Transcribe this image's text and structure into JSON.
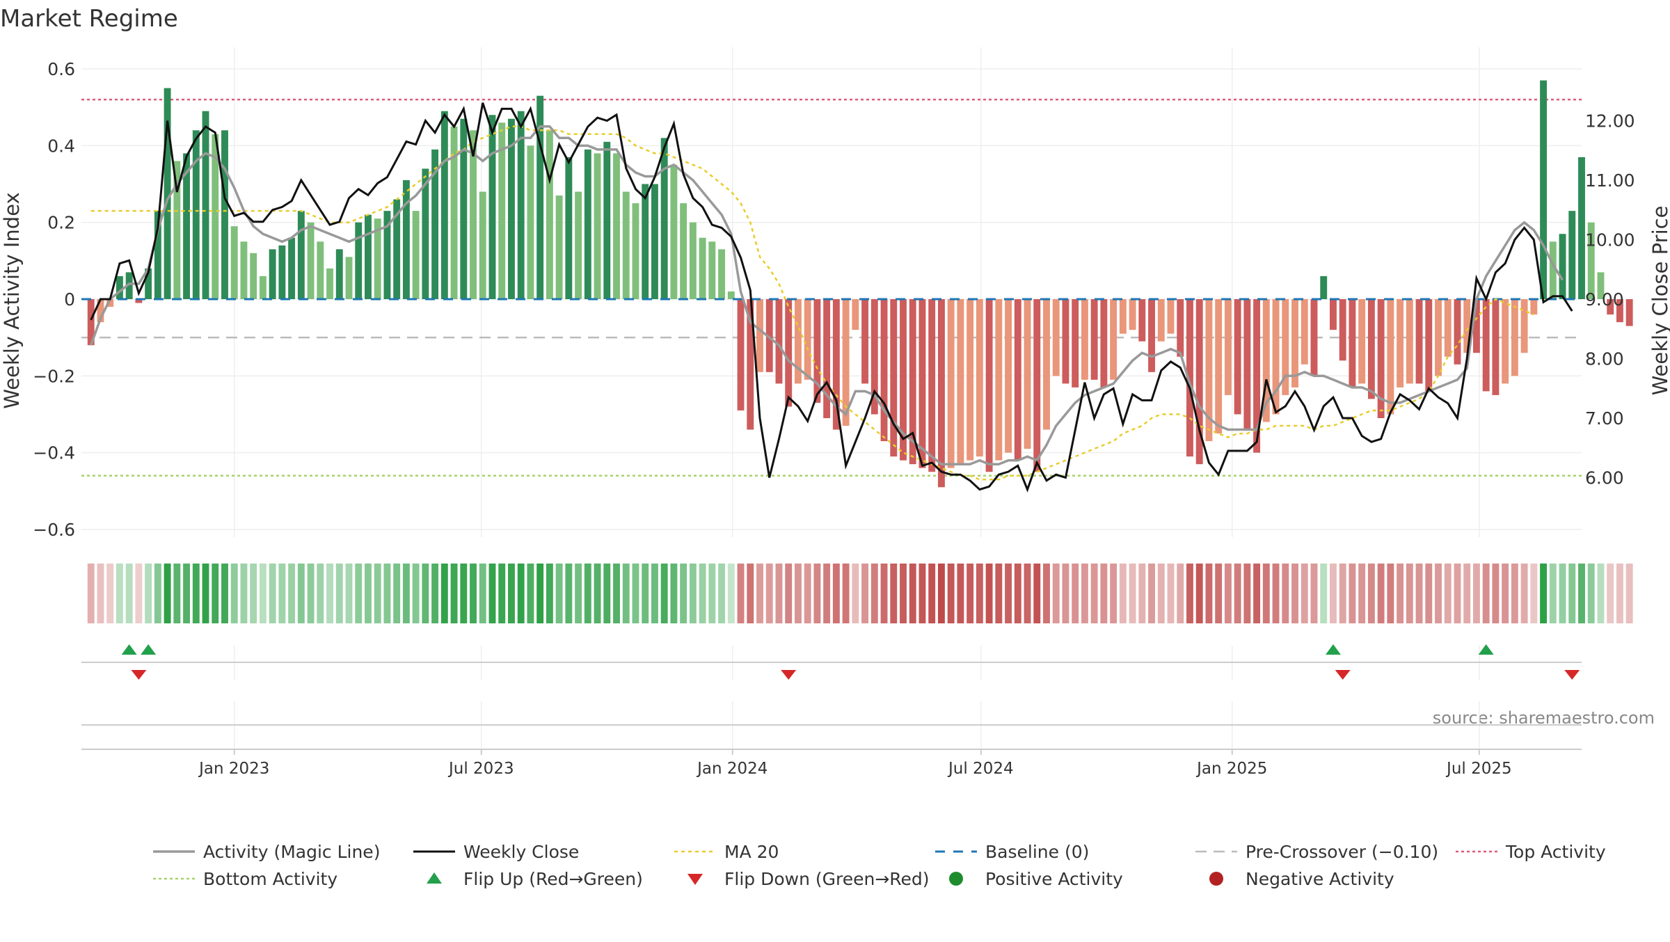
{
  "title": "Market Regime",
  "source": "source: sharemaestro.com",
  "colors": {
    "green_dark": "#2e8b57",
    "green_light": "#7fbf7b",
    "red_dark": "#cd5c5c",
    "red_light": "#e9967a",
    "close_line": "#111111",
    "magic_line": "#999999",
    "ma20": "#e8cc2a",
    "baseline": "#1f77b4",
    "pre_crossover": "#bbbbbb",
    "top_activity": "#e05a7a",
    "bottom_activity": "#a8d26b",
    "flip_up": "#22a04b",
    "flip_down": "#d62728",
    "positive_dot": "#1e8c2e",
    "negative_dot": "#b22222"
  },
  "chart_data": {
    "type": "bar",
    "title": "Market Regime",
    "xlabel": "",
    "y_left_label": "Weekly Activity Index",
    "y_right_label": "Weekly Close Price",
    "y_left_range": [
      -0.62,
      0.62
    ],
    "y_right_range": [
      5.0,
      13.0
    ],
    "y_left_ticks": [
      {
        "v": 0.6,
        "label": "0.6"
      },
      {
        "v": 0.4,
        "label": "0.4"
      },
      {
        "v": 0.2,
        "label": "0.2"
      },
      {
        "v": 0,
        "label": "0"
      },
      {
        "v": -0.2,
        "label": "−0.2"
      },
      {
        "v": -0.4,
        "label": "−0.4"
      },
      {
        "v": -0.6,
        "label": "−0.6"
      }
    ],
    "y_right_ticks": [
      {
        "v": 12,
        "label": "12.00"
      },
      {
        "v": 11,
        "label": "11.00"
      },
      {
        "v": 10,
        "label": "10.00"
      },
      {
        "v": 9,
        "label": "9.00"
      },
      {
        "v": 8,
        "label": "8.00"
      },
      {
        "v": 7,
        "label": "7.00"
      },
      {
        "v": 6,
        "label": "6.00"
      }
    ],
    "x_range": [
      "2022-09-11",
      "2025-09-14"
    ],
    "x_ticks": [
      {
        "date": "2023-01-01",
        "label": "Jan 2023"
      },
      {
        "date": "2023-07-01",
        "label": "Jul 2023"
      },
      {
        "date": "2024-01-01",
        "label": "Jan 2024"
      },
      {
        "date": "2024-07-01",
        "label": "Jul 2024"
      },
      {
        "date": "2025-01-01",
        "label": "Jan 2025"
      },
      {
        "date": "2025-07-01",
        "label": "Jul 2025"
      }
    ],
    "grid": true,
    "legend_position": "bottom",
    "start_date": "2022-09-18",
    "activity": [
      -0.12,
      -0.06,
      -0.02,
      0.06,
      0.07,
      -0.01,
      0.08,
      0.23,
      0.55,
      0.36,
      0.38,
      0.44,
      0.49,
      0.43,
      0.44,
      0.19,
      0.15,
      0.12,
      0.06,
      0.13,
      0.14,
      0.16,
      0.23,
      0.2,
      0.15,
      0.08,
      0.13,
      0.11,
      0.2,
      0.22,
      0.21,
      0.23,
      0.26,
      0.31,
      0.23,
      0.34,
      0.39,
      0.49,
      0.45,
      0.47,
      0.44,
      0.28,
      0.48,
      0.46,
      0.47,
      0.49,
      0.4,
      0.53,
      0.44,
      0.27,
      0.37,
      0.28,
      0.39,
      0.38,
      0.41,
      0.38,
      0.28,
      0.25,
      0.3,
      0.3,
      0.42,
      0.35,
      0.25,
      0.2,
      0.16,
      0.15,
      0.13,
      0.02,
      -0.29,
      -0.34,
      -0.19,
      -0.19,
      -0.22,
      -0.28,
      -0.22,
      -0.21,
      -0.27,
      -0.31,
      -0.34,
      -0.33,
      -0.08,
      -0.22,
      -0.3,
      -0.37,
      -0.41,
      -0.42,
      -0.43,
      -0.44,
      -0.45,
      -0.49,
      -0.44,
      -0.43,
      -0.42,
      -0.41,
      -0.45,
      -0.42,
      -0.4,
      -0.42,
      -0.39,
      -0.45,
      -0.34,
      -0.2,
      -0.22,
      -0.23,
      -0.21,
      -0.21,
      -0.23,
      -0.21,
      -0.09,
      -0.08,
      -0.11,
      -0.19,
      -0.11,
      -0.09,
      -0.15,
      -0.41,
      -0.43,
      -0.37,
      -0.35,
      -0.25,
      -0.3,
      -0.34,
      -0.4,
      -0.32,
      -0.3,
      -0.25,
      -0.23,
      -0.17,
      -0.2,
      0.06,
      -0.08,
      -0.16,
      -0.23,
      -0.22,
      -0.26,
      -0.31,
      -0.3,
      -0.23,
      -0.22,
      -0.22,
      -0.24,
      -0.2,
      -0.15,
      -0.17,
      -0.14,
      -0.14,
      -0.24,
      -0.25,
      -0.22,
      -0.2,
      -0.14,
      -0.04,
      0.57,
      0.15,
      0.17,
      0.23,
      0.37,
      0.2,
      0.07,
      -0.04,
      -0.06,
      -0.07
    ],
    "close": [
      8.65,
      9.0,
      9.0,
      9.6,
      9.65,
      9.1,
      9.45,
      10.2,
      12.0,
      10.8,
      11.4,
      11.7,
      11.9,
      11.8,
      10.7,
      10.4,
      10.45,
      10.3,
      10.3,
      10.5,
      10.55,
      10.65,
      11.0,
      10.75,
      10.5,
      10.25,
      10.3,
      10.7,
      10.85,
      10.75,
      10.95,
      11.05,
      11.35,
      11.65,
      11.6,
      12.0,
      11.8,
      12.1,
      11.9,
      12.2,
      11.4,
      12.3,
      11.8,
      12.2,
      12.2,
      11.9,
      12.2,
      11.6,
      11.0,
      11.6,
      11.3,
      11.6,
      11.9,
      12.05,
      12.0,
      12.1,
      11.2,
      10.85,
      10.7,
      11.05,
      11.55,
      11.95,
      11.1,
      10.7,
      10.55,
      10.25,
      10.2,
      10.05,
      9.7,
      9.15,
      7.0,
      6.0,
      6.65,
      7.35,
      7.2,
      6.95,
      7.4,
      7.6,
      7.3,
      6.2,
      6.6,
      7.0,
      7.45,
      7.25,
      6.9,
      6.65,
      6.75,
      6.2,
      6.25,
      6.1,
      6.05,
      6.05,
      5.95,
      5.8,
      5.85,
      6.05,
      6.1,
      6.2,
      5.8,
      6.25,
      5.95,
      6.05,
      6.0,
      6.8,
      7.6,
      7.0,
      7.4,
      7.5,
      6.9,
      7.4,
      7.3,
      7.3,
      7.8,
      7.95,
      7.85,
      7.5,
      6.8,
      6.25,
      6.05,
      6.45,
      6.45,
      6.45,
      6.6,
      7.65,
      7.1,
      7.2,
      7.45,
      7.2,
      6.8,
      7.2,
      7.35,
      7.0,
      7.0,
      6.7,
      6.6,
      6.65,
      7.1,
      7.4,
      7.3,
      7.15,
      7.5,
      7.35,
      7.25,
      7.0,
      8.0,
      9.35,
      9.0,
      9.45,
      9.6,
      10.0,
      10.2,
      10.0,
      8.95,
      9.05,
      9.05,
      8.8
    ],
    "magic": [
      -0.12,
      -0.05,
      0.0,
      0.02,
      0.04,
      0.04,
      0.08,
      0.18,
      0.26,
      0.3,
      0.33,
      0.36,
      0.38,
      0.37,
      0.34,
      0.29,
      0.23,
      0.19,
      0.17,
      0.16,
      0.15,
      0.16,
      0.18,
      0.19,
      0.18,
      0.17,
      0.16,
      0.15,
      0.16,
      0.17,
      0.18,
      0.19,
      0.22,
      0.25,
      0.27,
      0.3,
      0.33,
      0.36,
      0.37,
      0.39,
      0.38,
      0.36,
      0.38,
      0.39,
      0.4,
      0.42,
      0.42,
      0.45,
      0.45,
      0.42,
      0.42,
      0.4,
      0.4,
      0.39,
      0.39,
      0.39,
      0.35,
      0.33,
      0.32,
      0.32,
      0.34,
      0.35,
      0.33,
      0.31,
      0.28,
      0.25,
      0.22,
      0.17,
      0.02,
      -0.06,
      -0.08,
      -0.1,
      -0.12,
      -0.16,
      -0.18,
      -0.2,
      -0.22,
      -0.25,
      -0.28,
      -0.3,
      -0.24,
      -0.24,
      -0.25,
      -0.29,
      -0.32,
      -0.35,
      -0.37,
      -0.39,
      -0.41,
      -0.43,
      -0.43,
      -0.43,
      -0.43,
      -0.42,
      -0.43,
      -0.43,
      -0.42,
      -0.42,
      -0.41,
      -0.42,
      -0.38,
      -0.33,
      -0.3,
      -0.27,
      -0.25,
      -0.24,
      -0.23,
      -0.22,
      -0.19,
      -0.16,
      -0.14,
      -0.15,
      -0.14,
      -0.13,
      -0.14,
      -0.22,
      -0.28,
      -0.31,
      -0.33,
      -0.34,
      -0.34,
      -0.34,
      -0.34,
      -0.27,
      -0.24,
      -0.2,
      -0.2,
      -0.19,
      -0.2,
      -0.2,
      -0.21,
      -0.22,
      -0.23,
      -0.23,
      -0.24,
      -0.26,
      -0.27,
      -0.27,
      -0.26,
      -0.25,
      -0.24,
      -0.23,
      -0.22,
      -0.21,
      -0.18,
      0.0,
      0.06,
      0.1,
      0.14,
      0.18,
      0.2,
      0.18,
      0.14,
      0.09,
      0.05
    ],
    "ma20": [
      0.23,
      0.23,
      0.23,
      0.23,
      0.23,
      0.23,
      0.23,
      0.23,
      0.23,
      0.23,
      0.23,
      0.23,
      0.23,
      0.23,
      0.23,
      0.23,
      0.23,
      0.23,
      0.23,
      0.23,
      0.23,
      0.23,
      0.23,
      0.22,
      0.21,
      0.2,
      0.2,
      0.2,
      0.21,
      0.22,
      0.23,
      0.24,
      0.26,
      0.28,
      0.3,
      0.32,
      0.34,
      0.36,
      0.38,
      0.39,
      0.41,
      0.42,
      0.43,
      0.44,
      0.45,
      0.45,
      0.44,
      0.44,
      0.44,
      0.44,
      0.43,
      0.43,
      0.43,
      0.43,
      0.43,
      0.43,
      0.42,
      0.4,
      0.39,
      0.38,
      0.38,
      0.37,
      0.36,
      0.35,
      0.34,
      0.32,
      0.3,
      0.28,
      0.25,
      0.2,
      0.11,
      0.08,
      0.04,
      -0.02,
      -0.07,
      -0.13,
      -0.18,
      -0.22,
      -0.25,
      -0.28,
      -0.3,
      -0.32,
      -0.34,
      -0.36,
      -0.38,
      -0.4,
      -0.41,
      -0.42,
      -0.43,
      -0.44,
      -0.45,
      -0.46,
      -0.46,
      -0.47,
      -0.47,
      -0.47,
      -0.46,
      -0.46,
      -0.46,
      -0.45,
      -0.44,
      -0.43,
      -0.42,
      -0.41,
      -0.4,
      -0.39,
      -0.38,
      -0.37,
      -0.35,
      -0.34,
      -0.33,
      -0.31,
      -0.3,
      -0.3,
      -0.3,
      -0.31,
      -0.33,
      -0.34,
      -0.35,
      -0.36,
      -0.35,
      -0.35,
      -0.34,
      -0.34,
      -0.33,
      -0.33,
      -0.33,
      -0.33,
      -0.34,
      -0.33,
      -0.33,
      -0.32,
      -0.31,
      -0.3,
      -0.29,
      -0.29,
      -0.29,
      -0.28,
      -0.27,
      -0.26,
      -0.24,
      -0.2,
      -0.15,
      -0.12,
      -0.08,
      -0.05,
      -0.02,
      0.0,
      -0.01,
      -0.02,
      -0.03,
      -0.04
    ],
    "baseline_value": 0,
    "pre_crossover_value": -0.1,
    "top_activity_value": 0.52,
    "bottom_activity_value": -0.46,
    "flip_up_dates": [
      "2022-10-16",
      "2022-10-30",
      "2025-03-16",
      "2025-07-06"
    ],
    "flip_down_dates": [
      "2022-10-23",
      "2024-02-11",
      "2025-03-23",
      "2025-09-07"
    ],
    "legend": [
      "Activity (Magic Line)",
      "Weekly Close",
      "MA 20",
      "Baseline (0)",
      "Pre-Crossover (−0.10)",
      "Top Activity",
      "Bottom Activity",
      "Flip Up (Red→Green)",
      "Flip Down (Green→Red)",
      "Positive Activity",
      "Negative Activity"
    ]
  }
}
